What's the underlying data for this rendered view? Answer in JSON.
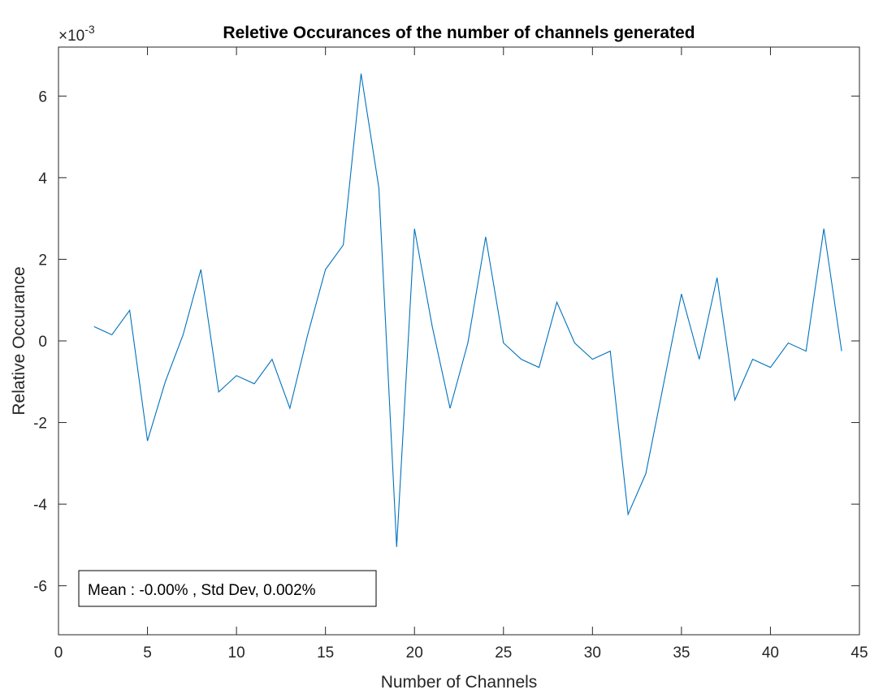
{
  "chart_data": {
    "type": "line",
    "title": "Reletive Occurances of the number of channels generated",
    "xlabel": "Number of Channels",
    "ylabel": "Relative Occurance",
    "y_exponent_base": "×10",
    "y_exponent_power": "-3",
    "xlim": [
      0,
      45
    ],
    "ylim": [
      -7.2,
      7.2
    ],
    "xticks": [
      0,
      5,
      10,
      15,
      20,
      25,
      30,
      35,
      40,
      45
    ],
    "yticks": [
      -6,
      -4,
      -2,
      0,
      2,
      4,
      6
    ],
    "grid": false,
    "line_color": "#0072bd",
    "annotation": "Mean : -0.00% , Std Dev, 0.002%",
    "x": [
      2,
      3,
      4,
      5,
      6,
      7,
      8,
      9,
      10,
      11,
      12,
      13,
      14,
      15,
      16,
      17,
      18,
      19,
      20,
      21,
      22,
      23,
      24,
      25,
      26,
      27,
      28,
      29,
      30,
      31,
      32,
      33,
      34,
      35,
      36,
      37,
      38,
      39,
      40,
      41,
      42,
      43,
      44
    ],
    "y": [
      0.35,
      0.15,
      0.75,
      -2.45,
      -1.0,
      0.15,
      1.75,
      -1.25,
      -0.85,
      -1.05,
      -0.45,
      -1.65,
      0.15,
      1.75,
      2.35,
      6.55,
      3.75,
      -5.05,
      2.75,
      0.35,
      -1.65,
      -0.05,
      2.55,
      -0.05,
      -0.45,
      -0.65,
      0.95,
      -0.05,
      -0.45,
      -0.25,
      -4.25,
      -3.25,
      -1.05,
      1.15,
      -0.45,
      1.55,
      -1.45,
      -0.45,
      -0.65,
      -0.05,
      -0.25,
      2.75,
      -0.25
    ]
  }
}
